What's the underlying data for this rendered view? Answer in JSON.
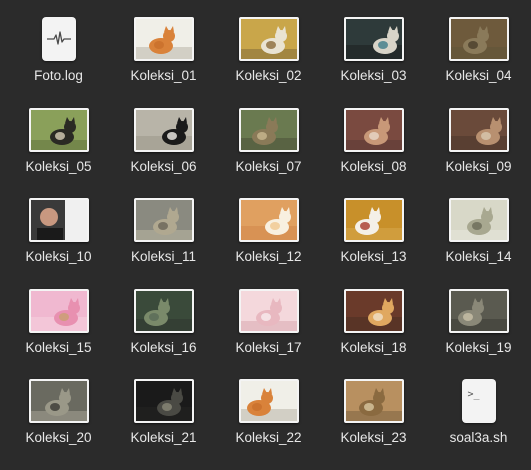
{
  "files": [
    {
      "name": "Foto.log",
      "icon": "log-file-icon",
      "kind": "log"
    },
    {
      "name": "Koleksi_01",
      "icon": "cat-photo-thumbnail",
      "kind": "image",
      "colors": [
        "#f0efe8",
        "#d9823a",
        "#c86f2c",
        "#9a9485"
      ]
    },
    {
      "name": "Koleksi_02",
      "icon": "cat-photo-thumbnail",
      "kind": "image",
      "colors": [
        "#c9a64a",
        "#e9e3d2",
        "#8b6a3a",
        "#5a4a30"
      ]
    },
    {
      "name": "Koleksi_03",
      "icon": "cat-photo-thumbnail",
      "kind": "image",
      "colors": [
        "#2e3a3a",
        "#d8d4c8",
        "#3d7a88",
        "#111111"
      ]
    },
    {
      "name": "Koleksi_04",
      "icon": "cat-photo-thumbnail",
      "kind": "image",
      "colors": [
        "#6e5a3c",
        "#8a7a5a",
        "#4a3e2a",
        "#5a5236"
      ]
    },
    {
      "name": "Koleksi_05",
      "icon": "cat-photo-thumbnail",
      "kind": "image",
      "colors": [
        "#8aa05a",
        "#2a2a24",
        "#d8d0b8",
        "#4a5a30"
      ]
    },
    {
      "name": "Koleksi_06",
      "icon": "cat-photo-thumbnail",
      "kind": "image",
      "colors": [
        "#b8b4a8",
        "#1a1a1a",
        "#f2f0ea",
        "#8a8678"
      ]
    },
    {
      "name": "Koleksi_07",
      "icon": "cat-photo-thumbnail",
      "kind": "image",
      "colors": [
        "#6a7a50",
        "#8a7a58",
        "#c8b890",
        "#3a3a2a"
      ]
    },
    {
      "name": "Koleksi_08",
      "icon": "cat-photo-thumbnail",
      "kind": "image",
      "colors": [
        "#7a4a40",
        "#c89878",
        "#e8d8c8",
        "#4a3030"
      ]
    },
    {
      "name": "Koleksi_09",
      "icon": "cat-photo-thumbnail",
      "kind": "image",
      "colors": [
        "#6a4a3a",
        "#b89070",
        "#d8c8b0",
        "#3a2a24"
      ]
    },
    {
      "name": "Koleksi_10",
      "icon": "person-photo-thumbnail",
      "kind": "image",
      "colors": [
        "#3a3a3a",
        "#c89880",
        "#f0f0f0",
        "#1a1a1a"
      ]
    },
    {
      "name": "Koleksi_11",
      "icon": "cat-photo-thumbnail",
      "kind": "image",
      "colors": [
        "#8a8a80",
        "#b0a890",
        "#6a6458",
        "#d8d0b8"
      ]
    },
    {
      "name": "Koleksi_12",
      "icon": "cat-photo-thumbnail",
      "kind": "image",
      "colors": [
        "#e0a060",
        "#f8f0e0",
        "#f0c890",
        "#c87840"
      ]
    },
    {
      "name": "Koleksi_13",
      "icon": "cat-photo-thumbnail",
      "kind": "image",
      "colors": [
        "#c8902a",
        "#f4f0e8",
        "#a83a2a",
        "#e0b860"
      ]
    },
    {
      "name": "Koleksi_14",
      "icon": "cat-photo-thumbnail",
      "kind": "image",
      "colors": [
        "#d8d8c8",
        "#a8a890",
        "#6a6a58",
        "#f0f0e8"
      ]
    },
    {
      "name": "Koleksi_15",
      "icon": "cat-photo-thumbnail",
      "kind": "image",
      "colors": [
        "#f0b8d0",
        "#e890b0",
        "#c8a070",
        "#f8e0e8"
      ]
    },
    {
      "name": "Koleksi_16",
      "icon": "cat-photo-thumbnail",
      "kind": "image",
      "colors": [
        "#3a4a3a",
        "#7a8a6a",
        "#5a6a58",
        "#2a2a2a"
      ]
    },
    {
      "name": "Koleksi_17",
      "icon": "cat-photo-thumbnail",
      "kind": "image",
      "colors": [
        "#f4d8dc",
        "#e8b8c0",
        "#f8ecee",
        "#c89098"
      ]
    },
    {
      "name": "Koleksi_18",
      "icon": "cat-photo-thumbnail",
      "kind": "image",
      "colors": [
        "#6a3a2a",
        "#e0a860",
        "#f0e0c8",
        "#3a2a20"
      ]
    },
    {
      "name": "Koleksi_19",
      "icon": "cat-photo-thumbnail",
      "kind": "image",
      "colors": [
        "#5a5a50",
        "#8a8878",
        "#c8c0a8",
        "#2a2a24"
      ]
    },
    {
      "name": "Koleksi_20",
      "icon": "cat-photo-thumbnail",
      "kind": "image",
      "colors": [
        "#6a6a60",
        "#9a9888",
        "#3a3a34",
        "#c8c4b4"
      ]
    },
    {
      "name": "Koleksi_21",
      "icon": "cat-photo-thumbnail",
      "kind": "image",
      "colors": [
        "#1a1a1a",
        "#4a4a44",
        "#8a8878",
        "#2a2a28"
      ]
    },
    {
      "name": "Koleksi_22",
      "icon": "cat-photo-thumbnail",
      "kind": "image",
      "colors": [
        "#f0efe8",
        "#d9823a",
        "#c86f2c",
        "#9a9485"
      ]
    },
    {
      "name": "Koleksi_23",
      "icon": "cat-photo-thumbnail",
      "kind": "image",
      "colors": [
        "#b89060",
        "#8a6a40",
        "#d8c8a0",
        "#5a4a30"
      ]
    },
    {
      "name": "soal3a.sh",
      "icon": "shell-script-icon",
      "kind": "script",
      "glyph": ">_"
    }
  ]
}
